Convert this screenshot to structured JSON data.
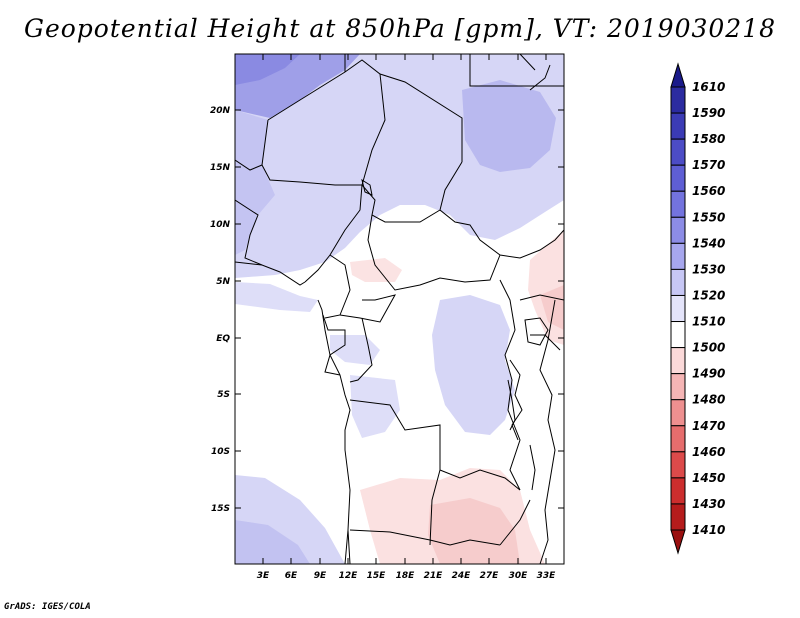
{
  "title": "Geopotential Height at 850hPa [gpm], VT: 2019030218",
  "credit": "GrADS: IGES/COLA",
  "lat_labels": [
    "20N",
    "15N",
    "10N",
    "5N",
    "EQ",
    "5S",
    "10S",
    "15S"
  ],
  "lon_labels": [
    "3E",
    "6E",
    "9E",
    "12E",
    "15E",
    "18E",
    "21E",
    "24E",
    "27E",
    "30E",
    "33E"
  ],
  "colorbar": {
    "levels": [
      "1610",
      "1590",
      "1580",
      "1570",
      "1560",
      "1550",
      "1540",
      "1530",
      "1520",
      "1510",
      "1500",
      "1490",
      "1480",
      "1470",
      "1460",
      "1450",
      "1430",
      "1410"
    ],
    "colors": [
      "#1a1a8a",
      "#2b2ba0",
      "#3b3bb5",
      "#4c4cc6",
      "#5e5ed4",
      "#7373de",
      "#8c8ce6",
      "#a7a7ee",
      "#c7c7f5",
      "#e4e4fa",
      "#ffffff",
      "#fbd9d9",
      "#f5b5b5",
      "#ee9090",
      "#e66d6d",
      "#dc4a4a",
      "#cc2e2e",
      "#b51c1c",
      "#9a1010"
    ]
  }
}
